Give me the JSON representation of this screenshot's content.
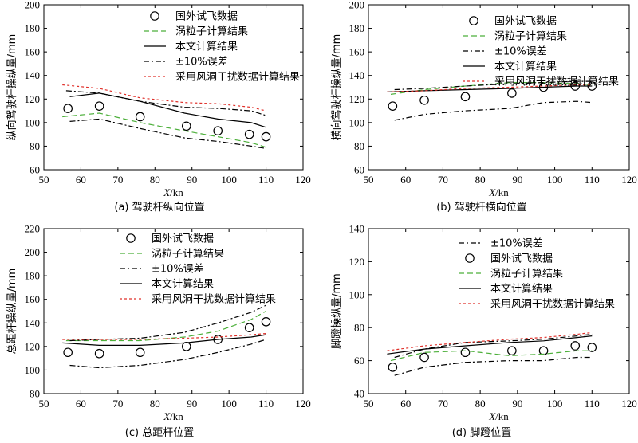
{
  "styles": {
    "flight": {
      "stroke": "#000000",
      "dash": ""
    },
    "vortex": {
      "stroke": "#4caf3a",
      "dash": "7,4"
    },
    "this": {
      "stroke": "#000000",
      "dash": ""
    },
    "err": {
      "stroke": "#000000",
      "dash": "7,3,2,3"
    },
    "wind": {
      "stroke": "#e0302a",
      "dash": "3,3"
    }
  },
  "chart_data": [
    {
      "type": "line",
      "caption": "(a) 驾驶杆纵向位置",
      "xlabel_italic": "X",
      "xlabel_rest": "/kn",
      "ylabel": "纵向驾驶杆操纵量/mm",
      "xlim": [
        50,
        120
      ],
      "ylim": [
        60,
        200
      ],
      "xticks": [
        50,
        60,
        70,
        80,
        90,
        100,
        110,
        120
      ],
      "yticks": [
        60,
        80,
        100,
        120,
        140,
        160,
        180,
        200
      ],
      "legend_order": [
        "flight",
        "vortex",
        "this",
        "err",
        "wind"
      ],
      "legend_labels": {
        "flight": "国外试飞数据",
        "vortex": "涡粒子计算结果",
        "this": "本文计算结果",
        "err": "±10%误差",
        "wind": "采用风洞干扰数据计算结果"
      },
      "series": [
        {
          "key": "flight",
          "kind": "marker",
          "x": [
            56.5,
            65,
            76,
            88.5,
            97,
            105.5,
            110
          ],
          "y": [
            112,
            114,
            105,
            97,
            93,
            90,
            88
          ]
        },
        {
          "key": "vortex",
          "kind": "line",
          "x": [
            55,
            65,
            76,
            88,
            97,
            106,
            110
          ],
          "y": [
            105,
            108,
            100,
            93,
            88,
            83,
            79
          ]
        },
        {
          "key": "this",
          "kind": "line",
          "x": [
            57,
            65,
            76,
            88,
            97,
            106,
            110
          ],
          "y": [
            122,
            125,
            118,
            108,
            103,
            100,
            96
          ]
        },
        {
          "key": "err",
          "kind": "line",
          "x": [
            57,
            65,
            76,
            88,
            97,
            106,
            110
          ],
          "y": [
            101,
            103,
            95,
            87,
            84,
            80,
            78
          ]
        },
        {
          "key": "err",
          "kind": "line",
          "x": [
            56,
            65,
            76,
            88,
            97,
            106,
            110
          ],
          "y": [
            127,
            125,
            118,
            113,
            112,
            110,
            106
          ]
        },
        {
          "key": "wind",
          "kind": "line",
          "x": [
            55,
            65,
            76,
            88,
            97,
            106,
            110
          ],
          "y": [
            132,
            129,
            121,
            117,
            116,
            113,
            110
          ]
        }
      ]
    },
    {
      "type": "line",
      "caption": "(b) 驾驶杆横向位置",
      "xlabel_italic": "X",
      "xlabel_rest": "/kn",
      "ylabel": "横向驾驶杆操纵量/mm",
      "xlim": [
        50,
        120
      ],
      "ylim": [
        60,
        200
      ],
      "xticks": [
        50,
        60,
        70,
        80,
        90,
        100,
        110,
        120
      ],
      "yticks": [
        60,
        80,
        100,
        120,
        140,
        160,
        180,
        200
      ],
      "legend_order": [
        "flight",
        "vortex",
        "err",
        "this",
        "wind"
      ],
      "legend_labels": {
        "flight": "国外试飞数据",
        "vortex": "涡粒子计算结果",
        "err": "±10%误差",
        "this": "本文计算结果",
        "wind": "采用风洞干扰数据计算结果"
      },
      "series": [
        {
          "key": "flight",
          "kind": "marker",
          "x": [
            56.5,
            65,
            76,
            88.5,
            97,
            105.5,
            110
          ],
          "y": [
            114,
            119,
            122,
            125,
            130,
            131,
            131
          ]
        },
        {
          "key": "vortex",
          "kind": "line",
          "x": [
            56,
            65,
            76,
            88,
            97,
            106,
            110
          ],
          "y": [
            124,
            128,
            131,
            134,
            134,
            133,
            132
          ]
        },
        {
          "key": "err",
          "kind": "line",
          "x": [
            57,
            65,
            76,
            88,
            97,
            106,
            110
          ],
          "y": [
            102,
            107,
            110,
            112,
            117,
            118,
            117
          ]
        },
        {
          "key": "err",
          "kind": "line",
          "x": [
            57,
            65,
            76,
            88,
            97,
            106,
            110
          ],
          "y": [
            128,
            129,
            131,
            133,
            134,
            135,
            135
          ]
        },
        {
          "key": "this",
          "kind": "line",
          "x": [
            55,
            65,
            76,
            88,
            97,
            106,
            110
          ],
          "y": [
            126,
            127,
            128,
            129,
            130,
            131,
            131
          ]
        },
        {
          "key": "wind",
          "kind": "line",
          "x": [
            55,
            65,
            76,
            88,
            97,
            106,
            110
          ],
          "y": [
            126,
            127,
            129,
            130,
            131,
            132,
            132
          ]
        }
      ]
    },
    {
      "type": "line",
      "caption": "(c) 总距杆位置",
      "xlabel_italic": "X",
      "xlabel_rest": "/kn",
      "ylabel": "总距杆操纵量/mm",
      "xlim": [
        50,
        120
      ],
      "ylim": [
        80,
        220
      ],
      "xticks": [
        50,
        60,
        70,
        80,
        90,
        100,
        110,
        120
      ],
      "yticks": [
        80,
        100,
        120,
        140,
        160,
        180,
        200,
        220
      ],
      "legend_order": [
        "flight",
        "vortex",
        "err",
        "this",
        "wind"
      ],
      "legend_labels": {
        "flight": "国外试飞数据",
        "vortex": "涡粒子计算结果",
        "err": "±10%误差",
        "this": "本文计算结果",
        "wind": "采用风洞干扰数据计算结果"
      },
      "series": [
        {
          "key": "flight",
          "kind": "marker",
          "x": [
            56.5,
            65,
            76,
            88.5,
            97,
            105.5,
            110
          ],
          "y": [
            115,
            114,
            115,
            120,
            126,
            136,
            141
          ]
        },
        {
          "key": "vortex",
          "kind": "line",
          "x": [
            56,
            65,
            76,
            88,
            97,
            106,
            110
          ],
          "y": [
            125,
            125,
            125,
            128,
            133,
            143,
            150
          ]
        },
        {
          "key": "err",
          "kind": "line",
          "x": [
            57,
            65,
            76,
            88,
            97,
            106,
            110
          ],
          "y": [
            104,
            102,
            104,
            109,
            115,
            122,
            126
          ]
        },
        {
          "key": "err",
          "kind": "line",
          "x": [
            57,
            65,
            76,
            88,
            97,
            106,
            110
          ],
          "y": [
            125,
            126,
            127,
            132,
            140,
            149,
            155
          ]
        },
        {
          "key": "this",
          "kind": "line",
          "x": [
            55,
            65,
            76,
            88,
            97,
            106,
            110
          ],
          "y": [
            123,
            121,
            121,
            123,
            126,
            128,
            130
          ]
        },
        {
          "key": "wind",
          "kind": "line",
          "x": [
            55,
            65,
            76,
            88,
            97,
            106,
            110
          ],
          "y": [
            126,
            126,
            126,
            127,
            128,
            130,
            131
          ]
        }
      ]
    },
    {
      "type": "line",
      "caption": "(d) 脚蹬位置",
      "xlabel_italic": "X",
      "xlabel_rest": "/kn",
      "ylabel": "脚蹬操纵量/mm",
      "xlim": [
        50,
        120
      ],
      "ylim": [
        40,
        140
      ],
      "xticks": [
        50,
        60,
        70,
        80,
        90,
        100,
        110,
        120
      ],
      "yticks": [
        40,
        60,
        80,
        100,
        120,
        140
      ],
      "legend_order": [
        "err",
        "flight",
        "vortex",
        "this",
        "wind"
      ],
      "legend_labels": {
        "err": "±10%误差",
        "flight": "国外试飞数据",
        "vortex": "涡粒子计算结果",
        "this": "本文计算结果",
        "wind": "采用风洞干扰数据计算结果"
      },
      "series": [
        {
          "key": "flight",
          "kind": "marker",
          "x": [
            56.5,
            65,
            76,
            88.5,
            97,
            105.5,
            110
          ],
          "y": [
            56,
            62,
            65,
            66,
            66,
            69,
            68
          ]
        },
        {
          "key": "vortex",
          "kind": "line",
          "x": [
            56,
            65,
            76,
            88,
            97,
            106,
            110
          ],
          "y": [
            60,
            65,
            66,
            63,
            64,
            66,
            66
          ]
        },
        {
          "key": "err",
          "kind": "line",
          "x": [
            57,
            65,
            76,
            88,
            97,
            106,
            110
          ],
          "y": [
            51,
            56,
            59,
            60,
            60,
            62,
            62
          ]
        },
        {
          "key": "err",
          "kind": "line",
          "x": [
            57,
            65,
            76,
            88,
            97,
            106,
            110
          ],
          "y": [
            62,
            67,
            71,
            72,
            73,
            75,
            76
          ]
        },
        {
          "key": "this",
          "kind": "line",
          "x": [
            55,
            65,
            76,
            88,
            97,
            106,
            110
          ],
          "y": [
            64,
            67,
            69,
            71,
            72,
            74,
            75
          ]
        },
        {
          "key": "wind",
          "kind": "line",
          "x": [
            55,
            65,
            76,
            88,
            97,
            106,
            110
          ],
          "y": [
            66,
            69,
            71,
            73,
            74,
            76,
            77
          ]
        }
      ]
    }
  ]
}
